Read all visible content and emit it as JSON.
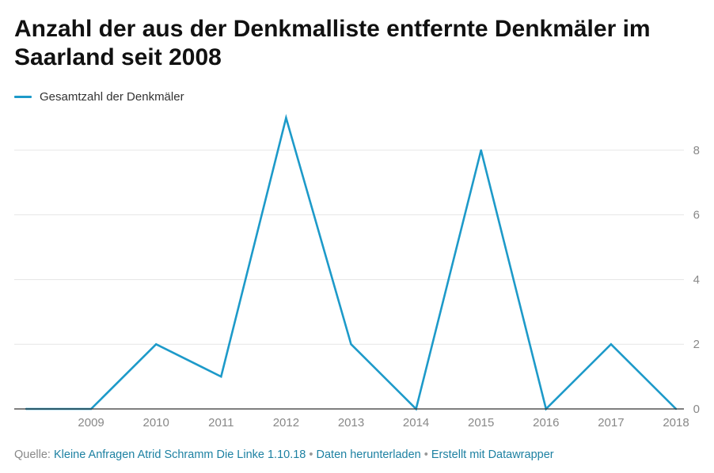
{
  "title": "Anzahl der aus der Denkmalliste entfernte Denkmäler im Saarland seit 2008",
  "legend_label": "Gesamtzahl der Denkmäler",
  "footer": {
    "source_label": "Quelle:",
    "source_link": "Kleine Anfragen Atrid Schramm Die Linke 1.10.18",
    "bullet": "•",
    "download_link": "Daten herunterladen",
    "credit_link": "Erstellt mit Datawrapper"
  },
  "colors": {
    "line": "#1d9ac9",
    "grid": "#e6e6e6",
    "axis": "#333333",
    "tick_label": "#888888"
  },
  "chart_data": {
    "type": "line",
    "title": "Anzahl der aus der Denkmalliste entfernte Denkmäler im Saarland seit 2008",
    "x": [
      2008,
      2009,
      2010,
      2011,
      2012,
      2013,
      2014,
      2015,
      2016,
      2017,
      2018
    ],
    "x_tick_labels": [
      "2009",
      "2010",
      "2011",
      "2012",
      "2013",
      "2014",
      "2015",
      "2016",
      "2017",
      "2018"
    ],
    "series": [
      {
        "name": "Gesamtzahl der Denkmäler",
        "values": [
          0,
          0,
          2,
          1,
          9,
          2,
          0,
          8,
          0,
          2,
          0
        ]
      }
    ],
    "y_ticks": [
      "0",
      "2",
      "4",
      "6",
      "8"
    ],
    "xlim": [
      2008,
      2018
    ],
    "ylim": [
      0,
      9
    ],
    "y_axis_side": "right",
    "grid": true,
    "legend_position": "top-left"
  }
}
